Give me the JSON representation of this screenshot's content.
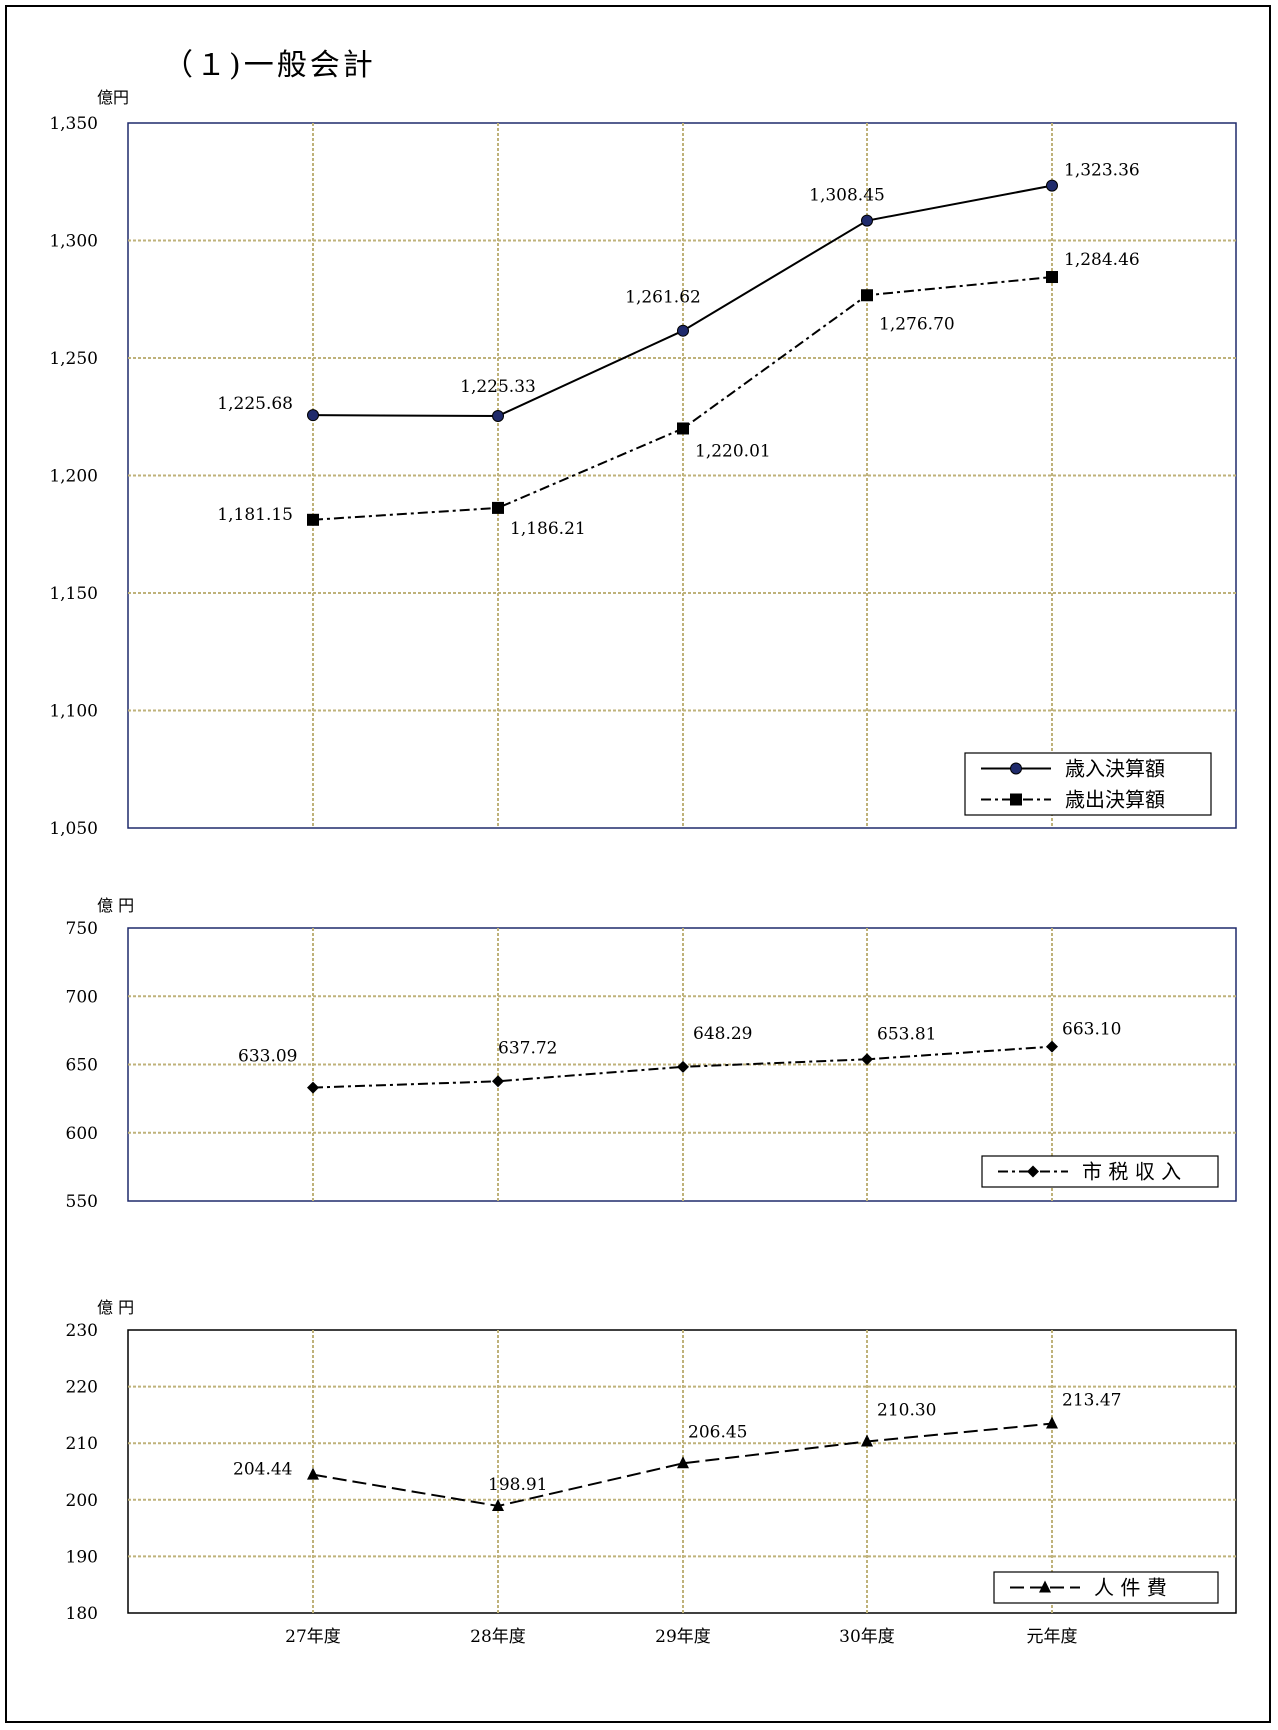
{
  "page": {
    "title": "（１)一般会計"
  },
  "chart_data": [
    {
      "type": "line",
      "unit": "億円",
      "categories": [
        "27年度",
        "28年度",
        "29年度",
        "30年度",
        "元年度"
      ],
      "ylim": [
        1050,
        1350
      ],
      "yticks": [
        "1,050",
        "1,100",
        "1,150",
        "1,200",
        "1,250",
        "1,300",
        "1,350"
      ],
      "grid": true,
      "legend": "bottom-right",
      "series": [
        {
          "name": "歳入決算額",
          "values": [
            1225.68,
            1225.33,
            1261.62,
            1308.45,
            1323.36
          ],
          "labels": [
            "1,225.68",
            "1,225.33",
            "1,261.62",
            "1,308.45",
            "1,323.36"
          ],
          "marker": "circle",
          "line": "solid",
          "marker_color": "#1f2a6b"
        },
        {
          "name": "歳出決算額",
          "values": [
            1181.15,
            1186.21,
            1220.01,
            1276.7,
            1284.46
          ],
          "labels": [
            "1,181.15",
            "1,186.21",
            "1,220.01",
            "1,276.70",
            "1,284.46"
          ],
          "marker": "square",
          "line": "dashdot",
          "marker_color": "#000000"
        }
      ]
    },
    {
      "type": "line",
      "unit": "億 円",
      "categories": [
        "27年度",
        "28年度",
        "29年度",
        "30年度",
        "元年度"
      ],
      "ylim": [
        550,
        750
      ],
      "yticks": [
        "550",
        "600",
        "650",
        "700",
        "750"
      ],
      "grid": true,
      "legend": "bottom-right",
      "series": [
        {
          "name": "市 税 収 入",
          "values": [
            633.09,
            637.72,
            648.29,
            653.81,
            663.1
          ],
          "labels": [
            "633.09",
            "637.72",
            "648.29",
            "653.81",
            "663.10"
          ],
          "marker": "diamond",
          "line": "dashdot",
          "marker_color": "#000000"
        }
      ]
    },
    {
      "type": "line",
      "unit": "億 円",
      "categories": [
        "27年度",
        "28年度",
        "29年度",
        "30年度",
        "元年度"
      ],
      "ylim": [
        180,
        230
      ],
      "yticks": [
        "180",
        "190",
        "200",
        "210",
        "220",
        "230"
      ],
      "grid": true,
      "legend": "bottom-right",
      "series": [
        {
          "name": "人 件 費",
          "values": [
            204.44,
            198.91,
            206.45,
            210.3,
            213.47
          ],
          "labels": [
            "204.44",
            "198.91",
            "206.45",
            "210.30",
            "213.47"
          ],
          "marker": "triangle",
          "line": "dashed",
          "marker_color": "#000000"
        }
      ]
    }
  ],
  "colors": {
    "grid": "#bfb27a",
    "plot_border": "#1f2a6b",
    "line": "#000000"
  }
}
